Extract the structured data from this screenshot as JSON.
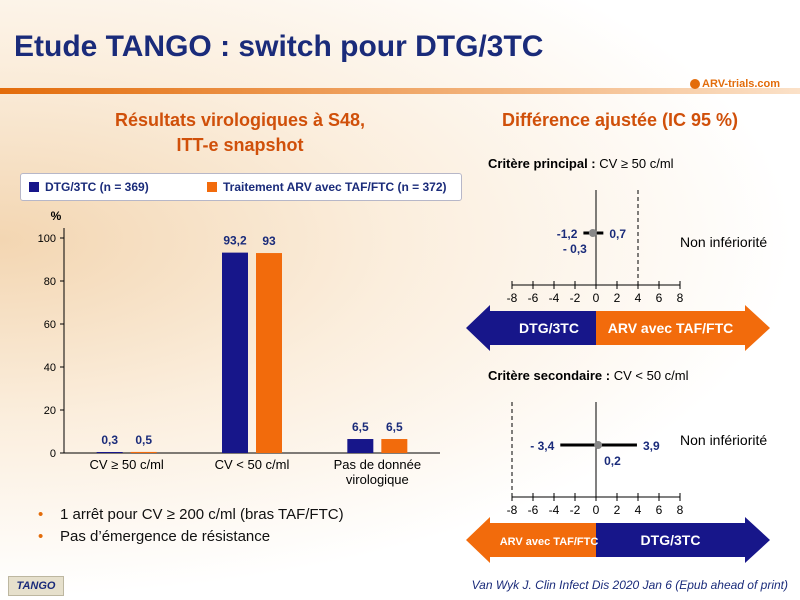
{
  "title": "Etude TANGO : switch pour DTG/3TC",
  "logo": "ARV-trials.com",
  "left_section": {
    "title_line1": "Résultats virologiques à S48,",
    "title_line2": "ITT-e snapshot"
  },
  "right_section": {
    "title": "Différence ajustée (IC 95 %)"
  },
  "colors": {
    "dtg": "#17168a",
    "taf": "#f26b0c",
    "title": "#1a2b7a",
    "accent": "#d0500a"
  },
  "chart_data": [
    {
      "type": "bar",
      "ylabel": "%",
      "ylim": [
        0,
        100
      ],
      "yticks": [
        0,
        20,
        40,
        60,
        80,
        100
      ],
      "categories": [
        "CV ≥ 50 c/ml",
        "CV < 50 c/ml",
        "Pas de donnée virologique"
      ],
      "series": [
        {
          "name": "DTG/3TC (n = 369)",
          "values": [
            0.3,
            93.2,
            6.5
          ],
          "labels": [
            "0,3",
            "93,2",
            "6,5"
          ]
        },
        {
          "name": "Traitement ARV avec TAF/FTC (n = 372)",
          "values": [
            0.5,
            93,
            6.5
          ],
          "labels": [
            "0,5",
            "93",
            "6,5"
          ]
        }
      ]
    },
    {
      "type": "forest",
      "title_bold": "Critère principal :",
      "title_rest": " CV ≥ 50 c/ml",
      "xlim": [
        -8,
        8
      ],
      "xticks": [
        -8,
        -6,
        -4,
        -2,
        0,
        2,
        4,
        6,
        8
      ],
      "point": -0.3,
      "ci": [
        -1.2,
        0.7
      ],
      "margin": 4,
      "labels": {
        "low": "-1,2",
        "high": "0,7",
        "point": "- 0,3"
      },
      "annotation": "Non infériorité",
      "arrow_left": "DTG/3TC",
      "arrow_right": "ARV avec TAF/FTC"
    },
    {
      "type": "forest",
      "title_bold": "Critère secondaire :",
      "title_rest": " CV < 50 c/ml",
      "xlim": [
        -8,
        8
      ],
      "xticks": [
        -8,
        -6,
        -4,
        -2,
        0,
        2,
        4,
        6,
        8
      ],
      "point": 0.2,
      "ci": [
        -3.4,
        3.9
      ],
      "margin": -8,
      "labels": {
        "low": "- 3,4",
        "high": "3,9",
        "point": "0,2"
      },
      "annotation": "Non infériorité",
      "arrow_left": "ARV avec TAF/FTC",
      "arrow_right": "DTG/3TC"
    }
  ],
  "bullets": [
    "1 arrêt pour CV ≥ 200 c/ml (bras TAF/FTC)",
    "Pas d’émergence de résistance"
  ],
  "footer_tag": "TANGO",
  "reference": "Van Wyk J. Clin Infect Dis 2020 Jan 6 (Epub ahead of print)"
}
